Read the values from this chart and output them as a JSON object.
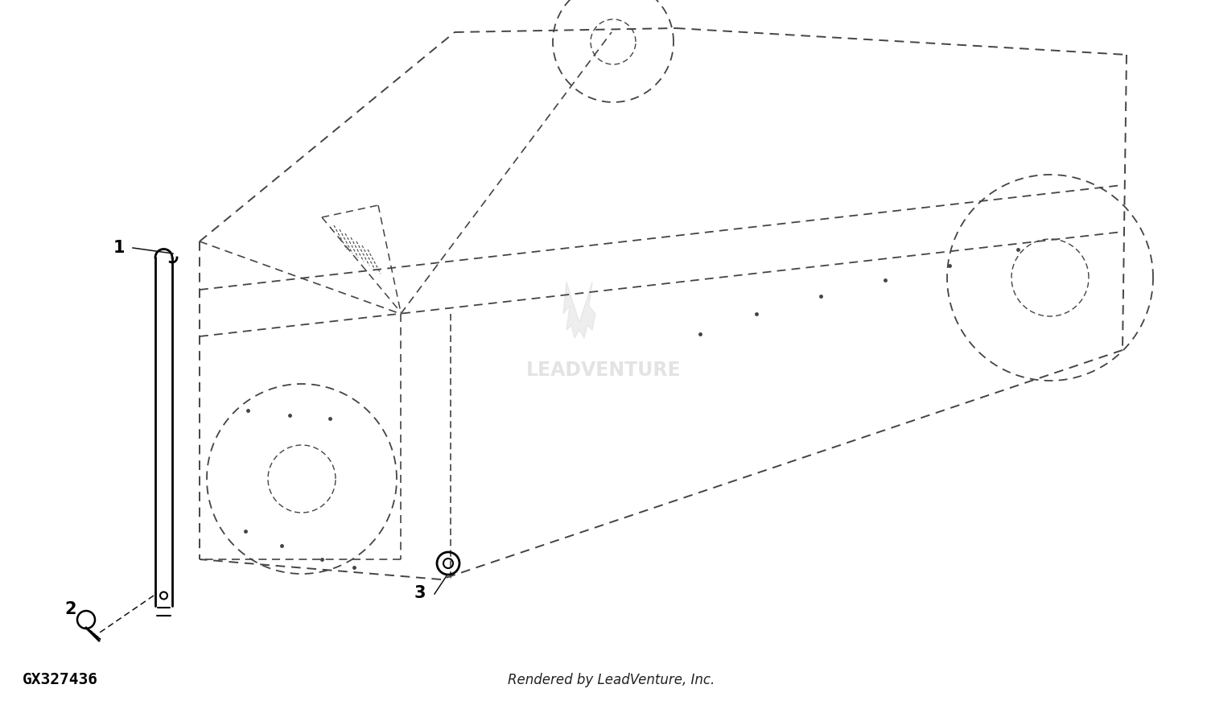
{
  "background_color": "#ffffff",
  "line_color": "#000000",
  "dashed_color": "#444444",
  "watermark_color": "#d5d5d5",
  "watermark_text": "LEADVENTURE",
  "footer_left": "GX327436",
  "footer_right": "Rendered by LeadVenture, Inc.",
  "fig_width": 15.0,
  "fig_height": 8.76,
  "dpi": 100,
  "part1_label": "1",
  "part2_label": "2",
  "part3_label": "3",
  "deck_dashes": [
    6,
    4
  ],
  "leader_dashes": [
    5,
    3
  ]
}
